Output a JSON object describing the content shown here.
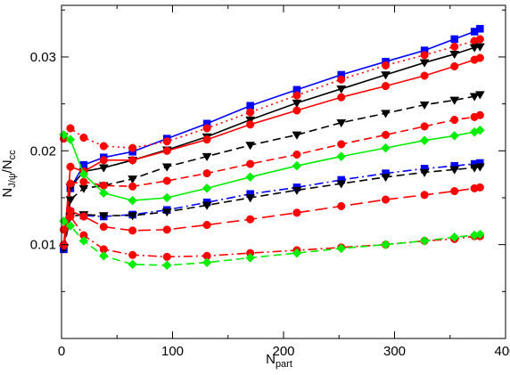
{
  "chart_data": {
    "type": "line",
    "title": "",
    "xlabel": {
      "main": "N",
      "sub": "part"
    },
    "ylabel": {
      "main": "N",
      "sub1": "J/ψ",
      "slash": "/N",
      "sub2": "cc"
    },
    "xlim": [
      0,
      400
    ],
    "ylim": [
      0.0,
      0.0355
    ],
    "xticks": [
      0,
      100,
      200,
      300,
      400
    ],
    "xtick_labels": [
      "0",
      "100",
      "200",
      "300",
      "400"
    ],
    "yticks": [
      0.01,
      0.02,
      0.03
    ],
    "ytick_labels": [
      "0.01",
      "0.02",
      "0.03"
    ],
    "grid": false,
    "legend": "none",
    "series": [
      {
        "color": "#0000ff",
        "marker": "square",
        "dash": "solid",
        "x": [
          2,
          8,
          20,
          38,
          64,
          95,
          131,
          170,
          212,
          252,
          292,
          327,
          354,
          372,
          377
        ],
        "y": [
          0.0097,
          0.016,
          0.0185,
          0.0193,
          0.0199,
          0.0213,
          0.0229,
          0.0248,
          0.0265,
          0.0281,
          0.0295,
          0.0307,
          0.0319,
          0.0327,
          0.033
        ]
      },
      {
        "color": "#ff0000",
        "marker": "circle",
        "dash": "dotted",
        "x": [
          2,
          8,
          20,
          38,
          64,
          95,
          131,
          170,
          212,
          252,
          292,
          327,
          354,
          372,
          377
        ],
        "y": [
          0.0213,
          0.0224,
          0.0214,
          0.0205,
          0.0203,
          0.021,
          0.0224,
          0.0241,
          0.0259,
          0.0276,
          0.0291,
          0.0302,
          0.0311,
          0.0317,
          0.0319
        ]
      },
      {
        "color": "#000000",
        "marker": "triangle-down",
        "dash": "solid",
        "x": [
          2,
          8,
          20,
          38,
          64,
          95,
          131,
          170,
          212,
          252,
          292,
          327,
          354,
          372,
          377
        ],
        "y": [
          0.0096,
          0.0161,
          0.0178,
          0.0182,
          0.019,
          0.0201,
          0.0215,
          0.0233,
          0.0251,
          0.0266,
          0.0281,
          0.0294,
          0.0303,
          0.031,
          0.0311
        ]
      },
      {
        "color": "#ff0000",
        "marker": "circle",
        "dash": "solid",
        "x": [
          2,
          8,
          20,
          38,
          64,
          95,
          131,
          170,
          212,
          252,
          292,
          327,
          354,
          372,
          377
        ],
        "y": [
          0.01,
          0.0183,
          0.0178,
          0.019,
          0.019,
          0.02,
          0.0212,
          0.0228,
          0.0243,
          0.0257,
          0.0269,
          0.028,
          0.029,
          0.0297,
          0.0299
        ]
      },
      {
        "color": "#000000",
        "marker": "triangle-down",
        "dash": "dashed",
        "x": [
          2,
          8,
          20,
          38,
          64,
          95,
          131,
          170,
          212,
          252,
          292,
          327,
          354,
          372,
          377
        ],
        "y": [
          0.0096,
          0.0148,
          0.016,
          0.0163,
          0.017,
          0.0183,
          0.0194,
          0.0206,
          0.0217,
          0.023,
          0.024,
          0.0249,
          0.0254,
          0.0258,
          0.026
        ]
      },
      {
        "color": "#ff0000",
        "marker": "circle",
        "dash": "dashed",
        "x": [
          2,
          8,
          20,
          38,
          64,
          95,
          131,
          170,
          212,
          252,
          292,
          327,
          354,
          372,
          377
        ],
        "y": [
          0.0098,
          0.0165,
          0.0167,
          0.0163,
          0.0162,
          0.0168,
          0.0176,
          0.0186,
          0.0196,
          0.0207,
          0.0217,
          0.0226,
          0.0233,
          0.0236,
          0.0238
        ]
      },
      {
        "color": "#00ee00",
        "marker": "diamond",
        "dash": "solid",
        "x": [
          2,
          8,
          20,
          38,
          64,
          95,
          131,
          170,
          212,
          252,
          292,
          327,
          354,
          372,
          377
        ],
        "y": [
          0.0217,
          0.0212,
          0.0175,
          0.0155,
          0.0147,
          0.015,
          0.016,
          0.0172,
          0.0184,
          0.0194,
          0.0203,
          0.0211,
          0.0216,
          0.022,
          0.0222
        ]
      },
      {
        "color": "#0000ff",
        "marker": "square",
        "dash": "dashdot",
        "x": [
          2,
          8,
          20,
          38,
          64,
          95,
          131,
          170,
          212,
          252,
          292,
          327,
          354,
          372,
          377
        ],
        "y": [
          0.0095,
          0.0135,
          0.0131,
          0.013,
          0.0132,
          0.0137,
          0.0145,
          0.0154,
          0.0161,
          0.0169,
          0.0176,
          0.0181,
          0.0184,
          0.0186,
          0.0187
        ]
      },
      {
        "color": "#000000",
        "marker": "triangle-down",
        "dash": "dashed",
        "x": [
          2,
          8,
          20,
          38,
          64,
          95,
          131,
          170,
          212,
          252,
          292,
          327,
          354,
          372,
          377
        ],
        "y": [
          0.0096,
          0.013,
          0.0132,
          0.0131,
          0.0131,
          0.0135,
          0.0142,
          0.015,
          0.0158,
          0.0165,
          0.0172,
          0.0177,
          0.018,
          0.0182,
          0.0183
        ]
      },
      {
        "color": "#ff0000",
        "marker": "circle",
        "dash": "longdash",
        "x": [
          2,
          8,
          20,
          38,
          64,
          95,
          131,
          170,
          212,
          252,
          292,
          327,
          354,
          372,
          377
        ],
        "y": [
          0.0099,
          0.0136,
          0.013,
          0.0119,
          0.0115,
          0.0116,
          0.0121,
          0.0127,
          0.0134,
          0.0141,
          0.0148,
          0.0153,
          0.0157,
          0.016,
          0.0161
        ]
      },
      {
        "color": "#ff0000",
        "marker": "circle",
        "dash": "dashdot",
        "x": [
          2,
          8,
          20,
          38,
          64,
          95,
          131,
          170,
          212,
          252,
          292,
          327,
          354,
          372,
          377
        ],
        "y": [
          0.0116,
          0.013,
          0.011,
          0.0095,
          0.0089,
          0.0087,
          0.0088,
          0.0091,
          0.0094,
          0.0097,
          0.01,
          0.0104,
          0.0106,
          0.0109,
          0.0109
        ]
      },
      {
        "color": "#00ee00",
        "marker": "diamond",
        "dash": "dashed",
        "x": [
          2,
          8,
          20,
          38,
          64,
          95,
          131,
          170,
          212,
          252,
          292,
          327,
          354,
          372,
          377
        ],
        "y": [
          0.0125,
          0.012,
          0.0104,
          0.0088,
          0.0079,
          0.0078,
          0.0081,
          0.0086,
          0.0091,
          0.0096,
          0.01,
          0.0104,
          0.0108,
          0.011,
          0.0111
        ]
      }
    ]
  }
}
